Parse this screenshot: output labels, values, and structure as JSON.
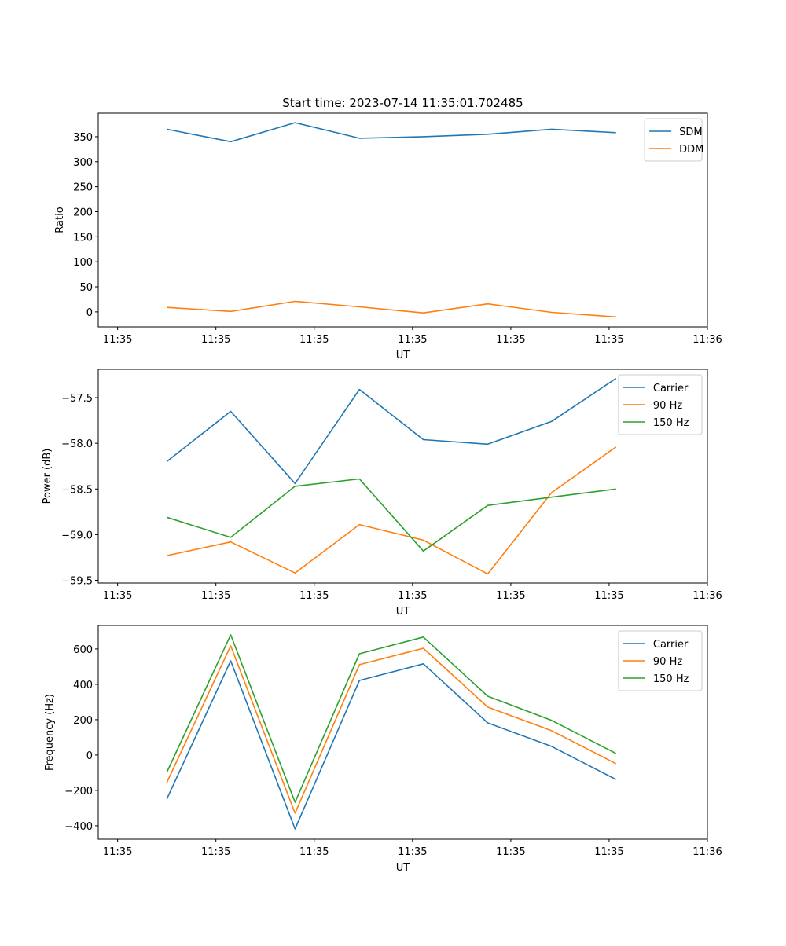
{
  "chart_data": [
    {
      "type": "line",
      "title": "Start time: 2023-07-14 11:35:01.702485",
      "xlabel": "UT",
      "ylabel": "Ratio",
      "x": [
        5.0,
        11.5,
        18.05,
        24.6,
        31.1,
        37.65,
        44.15,
        50.7
      ],
      "xlim": [
        -1.97,
        60
      ],
      "xticks": [
        0,
        10,
        20,
        30,
        40,
        50,
        60
      ],
      "xtick_labels": [
        "11:35",
        "11:35",
        "11:35",
        "11:35",
        "11:35",
        "11:35",
        "11:36"
      ],
      "ylim": [
        -30,
        397
      ],
      "yticks": [
        0,
        50,
        100,
        150,
        200,
        250,
        300,
        350
      ],
      "ytick_labels": [
        "0",
        "50",
        "100",
        "150",
        "200",
        "250",
        "300",
        "350"
      ],
      "legend": "top-right",
      "series": [
        {
          "name": "SDM",
          "color": "#1f77b4",
          "values": [
            365,
            340,
            378,
            347,
            350,
            355,
            365,
            358
          ]
        },
        {
          "name": "DDM",
          "color": "#ff7f0e",
          "values": [
            9,
            1,
            21,
            10,
            -2,
            16,
            -1,
            -10
          ]
        }
      ]
    },
    {
      "type": "line",
      "title": "",
      "xlabel": "UT",
      "ylabel": "Power (dB)",
      "x": [
        5.0,
        11.5,
        18.05,
        24.6,
        31.1,
        37.65,
        44.15,
        50.7
      ],
      "xlim": [
        -1.97,
        60
      ],
      "xticks": [
        0,
        10,
        20,
        30,
        40,
        50,
        60
      ],
      "xtick_labels": [
        "11:35",
        "11:35",
        "11:35",
        "11:35",
        "11:35",
        "11:35",
        "11:36"
      ],
      "ylim": [
        -59.53,
        -57.19
      ],
      "yticks": [
        -57.5,
        -58.0,
        -58.5,
        -59.0,
        -59.5
      ],
      "ytick_labels": [
        "−57.5",
        "−58.0",
        "−58.5",
        "−59.0",
        "−59.5"
      ],
      "legend": "top-right",
      "series": [
        {
          "name": "Carrier",
          "color": "#1f77b4",
          "values": [
            -58.2,
            -57.65,
            -58.44,
            -57.41,
            -57.96,
            -58.01,
            -57.76,
            -57.29
          ]
        },
        {
          "name": "90 Hz",
          "color": "#ff7f0e",
          "values": [
            -59.23,
            -59.08,
            -59.42,
            -58.89,
            -59.06,
            -59.43,
            -58.54,
            -58.04
          ]
        },
        {
          "name": "150 Hz",
          "color": "#2ca02c",
          "values": [
            -58.81,
            -59.03,
            -58.47,
            -58.39,
            -59.18,
            -58.68,
            -58.59,
            -58.5
          ]
        }
      ]
    },
    {
      "type": "line",
      "title": "",
      "xlabel": "UT",
      "ylabel": "Frequency (Hz)",
      "x": [
        5.0,
        11.5,
        18.05,
        24.6,
        31.1,
        37.65,
        44.15,
        50.7
      ],
      "xlim": [
        -1.97,
        60
      ],
      "xticks": [
        0,
        10,
        20,
        30,
        40,
        50,
        60
      ],
      "xtick_labels": [
        "11:35",
        "11:35",
        "11:35",
        "11:35",
        "11:35",
        "11:35",
        "11:36"
      ],
      "ylim": [
        -476,
        733
      ],
      "yticks": [
        600,
        400,
        200,
        0,
        -200,
        -400
      ],
      "ytick_labels": [
        "600",
        "400",
        "200",
        "0",
        "−200",
        "−400"
      ],
      "legend": "top-right",
      "series": [
        {
          "name": "Carrier",
          "color": "#1f77b4",
          "values": [
            -249,
            533,
            -418,
            422,
            516,
            182,
            49,
            -138
          ]
        },
        {
          "name": "90 Hz",
          "color": "#ff7f0e",
          "values": [
            -156,
            618,
            -329,
            511,
            604,
            271,
            138,
            -49
          ]
        },
        {
          "name": "150 Hz",
          "color": "#2ca02c",
          "values": [
            -98,
            680,
            -267,
            573,
            667,
            333,
            196,
            9
          ]
        }
      ]
    }
  ]
}
